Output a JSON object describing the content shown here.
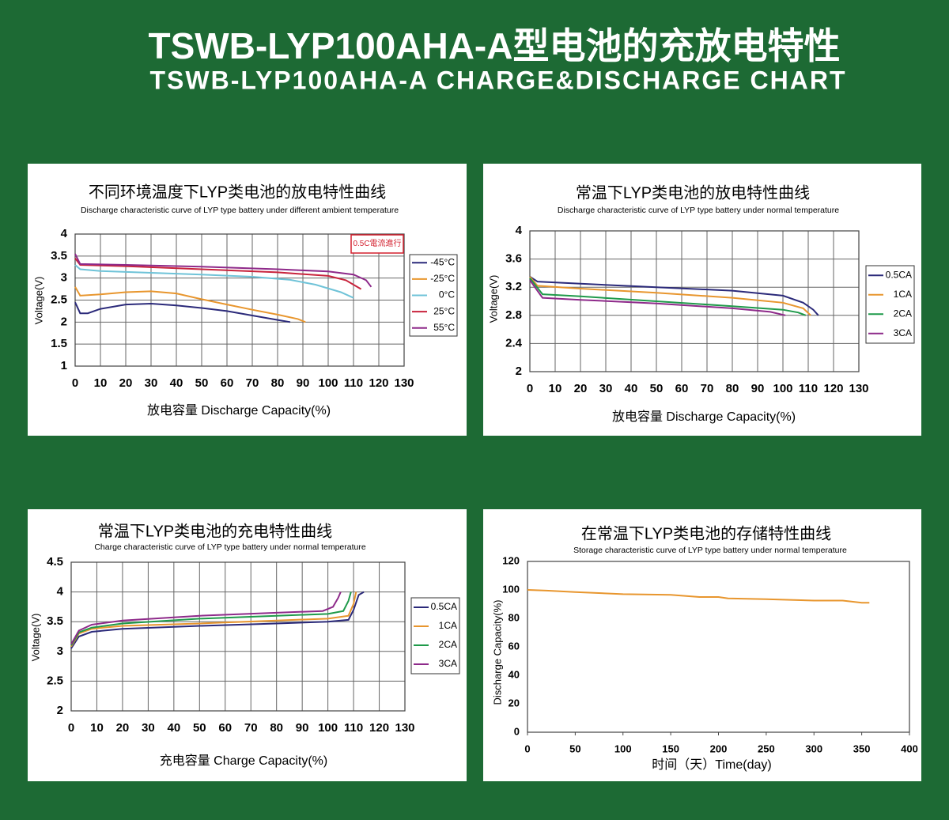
{
  "header": {
    "title": "TSWB-LYP100AHA-A型电池的充放电特性",
    "subtitle": "TSWB-LYP100AHA-A CHARGE&DISCHARGE CHART"
  },
  "chart_data": [
    {
      "type": "line",
      "title": "不同环境温度下LYP类电池的放电特性曲线",
      "subtitle": "Discharge characteristic curve of LYP type battery under different ambient temperature",
      "x_label": "放电容量 Discharge Capacity(%)",
      "y_label": "Voltage(V)",
      "annotation": "0.5C電流進行",
      "xlim": [
        0,
        130
      ],
      "xticks": [
        0,
        10,
        20,
        30,
        40,
        50,
        60,
        70,
        80,
        90,
        100,
        110,
        120,
        130
      ],
      "ylim": [
        1,
        4
      ],
      "yticks": [
        1,
        1.5,
        2,
        2.5,
        3,
        3.5,
        4
      ],
      "grid": true,
      "legend": "right",
      "series": [
        {
          "name": "-45°C",
          "color": "#2b2a7a",
          "x": [
            0,
            2,
            5,
            10,
            20,
            30,
            40,
            50,
            60,
            70,
            80,
            85
          ],
          "values": [
            2.45,
            2.2,
            2.2,
            2.3,
            2.4,
            2.42,
            2.38,
            2.32,
            2.25,
            2.15,
            2.05,
            2.0
          ]
        },
        {
          "name": "-25°C",
          "color": "#e8962e",
          "x": [
            0,
            2,
            10,
            20,
            30,
            40,
            50,
            60,
            70,
            80,
            88,
            91
          ],
          "values": [
            2.8,
            2.6,
            2.63,
            2.68,
            2.7,
            2.65,
            2.52,
            2.4,
            2.28,
            2.17,
            2.07,
            2.0
          ]
        },
        {
          "name": "0°C",
          "color": "#6fc3d8",
          "x": [
            0,
            2,
            10,
            30,
            50,
            70,
            85,
            95,
            105,
            110
          ],
          "values": [
            3.3,
            3.2,
            3.16,
            3.12,
            3.08,
            3.03,
            2.96,
            2.85,
            2.68,
            2.55
          ]
        },
        {
          "name": "25°C",
          "color": "#c8233c",
          "x": [
            0,
            2,
            20,
            50,
            80,
            100,
            107,
            113
          ],
          "values": [
            3.45,
            3.3,
            3.27,
            3.2,
            3.13,
            3.05,
            2.95,
            2.75
          ]
        },
        {
          "name": "55°C",
          "color": "#8e2a8a",
          "x": [
            0,
            2,
            20,
            50,
            80,
            100,
            110,
            115,
            117
          ],
          "values": [
            3.55,
            3.32,
            3.3,
            3.26,
            3.2,
            3.15,
            3.08,
            2.95,
            2.8
          ]
        }
      ]
    },
    {
      "type": "line",
      "title": "常温下LYP类电池的放电特性曲线",
      "subtitle": "Discharge characteristic curve of LYP type battery under normal temperature",
      "x_label": "放电容量 Discharge Capacity(%)",
      "y_label": "Voltage(V)",
      "xlim": [
        0,
        130
      ],
      "xticks": [
        0,
        10,
        20,
        30,
        40,
        50,
        60,
        70,
        80,
        90,
        100,
        110,
        120,
        130
      ],
      "ylim": [
        2,
        4
      ],
      "yticks": [
        2,
        2.4,
        2.8,
        3.2,
        3.6,
        4
      ],
      "grid": true,
      "legend": "right",
      "series": [
        {
          "name": "0.5CA",
          "color": "#2b2a7a",
          "x": [
            0,
            3,
            20,
            50,
            80,
            100,
            108,
            112,
            114
          ],
          "values": [
            3.35,
            3.28,
            3.25,
            3.2,
            3.15,
            3.08,
            2.98,
            2.88,
            2.8
          ]
        },
        {
          "name": "1CA",
          "color": "#e8962e",
          "x": [
            0,
            3,
            20,
            50,
            80,
            100,
            108,
            111
          ],
          "values": [
            3.35,
            3.22,
            3.18,
            3.12,
            3.05,
            2.98,
            2.9,
            2.8
          ]
        },
        {
          "name": "2CA",
          "color": "#1f9a4a",
          "x": [
            0,
            5,
            20,
            50,
            80,
            100,
            106,
            109
          ],
          "values": [
            3.33,
            3.1,
            3.07,
            3.0,
            2.93,
            2.88,
            2.84,
            2.8
          ]
        },
        {
          "name": "3CA",
          "color": "#8e2a8a",
          "x": [
            0,
            5,
            20,
            50,
            80,
            95,
            101
          ],
          "values": [
            3.3,
            3.05,
            3.02,
            2.97,
            2.9,
            2.85,
            2.8
          ]
        }
      ]
    },
    {
      "type": "line",
      "title": "常温下LYP类电池的充电特性曲线",
      "subtitle": "Charge characteristic curve of LYP type battery under normal temperature",
      "x_label": "充电容量 Charge Capacity(%)",
      "y_label": "Voltage(V)",
      "xlim": [
        0,
        130
      ],
      "xticks": [
        0,
        10,
        20,
        30,
        40,
        50,
        60,
        70,
        80,
        90,
        100,
        110,
        120,
        130
      ],
      "ylim": [
        2,
        4.5
      ],
      "yticks": [
        2,
        2.5,
        3,
        3.5,
        4,
        4.5
      ],
      "grid": true,
      "legend": "right",
      "series": [
        {
          "name": "0.5CA",
          "color": "#2b2a7a",
          "x": [
            0,
            3,
            8,
            20,
            50,
            80,
            100,
            108,
            110,
            112,
            114
          ],
          "values": [
            3.05,
            3.25,
            3.33,
            3.38,
            3.43,
            3.47,
            3.5,
            3.53,
            3.7,
            3.95,
            4.0
          ]
        },
        {
          "name": "1CA",
          "color": "#e8962e",
          "x": [
            0,
            3,
            8,
            20,
            50,
            80,
            100,
            108,
            110,
            111
          ],
          "values": [
            3.08,
            3.3,
            3.38,
            3.43,
            3.47,
            3.52,
            3.55,
            3.6,
            3.8,
            4.0
          ]
        },
        {
          "name": "2CA",
          "color": "#1f9a4a",
          "x": [
            0,
            3,
            8,
            20,
            50,
            80,
            100,
            106,
            108,
            109
          ],
          "values": [
            3.1,
            3.32,
            3.4,
            3.47,
            3.55,
            3.6,
            3.63,
            3.68,
            3.85,
            4.0
          ]
        },
        {
          "name": "3CA",
          "color": "#8e2a8a",
          "x": [
            0,
            3,
            8,
            20,
            50,
            80,
            98,
            102,
            104,
            105
          ],
          "values": [
            3.12,
            3.35,
            3.45,
            3.52,
            3.6,
            3.65,
            3.68,
            3.75,
            3.9,
            4.0
          ]
        }
      ]
    },
    {
      "type": "line",
      "title": "在常温下LYP类电池的存储特性曲线",
      "subtitle": "Storage characteristic curve of LYP type battery under normal temperature",
      "x_label": "时间（天）Time(day)",
      "y_label": "Discharge Capacity(%)",
      "xlim": [
        0,
        400
      ],
      "xticks": [
        0,
        50,
        100,
        150,
        200,
        250,
        300,
        350,
        400
      ],
      "ylim": [
        0,
        120
      ],
      "yticks": [
        0,
        20,
        40,
        60,
        80,
        100,
        120
      ],
      "grid": false,
      "series": [
        {
          "color": "#e8962e",
          "x": [
            0,
            20,
            50,
            100,
            150,
            180,
            200,
            210,
            250,
            300,
            330,
            350,
            358
          ],
          "values": [
            100,
            99.5,
            98.5,
            97,
            96.5,
            95,
            95,
            94,
            93.5,
            92.5,
            92.5,
            91,
            91
          ]
        }
      ]
    }
  ]
}
